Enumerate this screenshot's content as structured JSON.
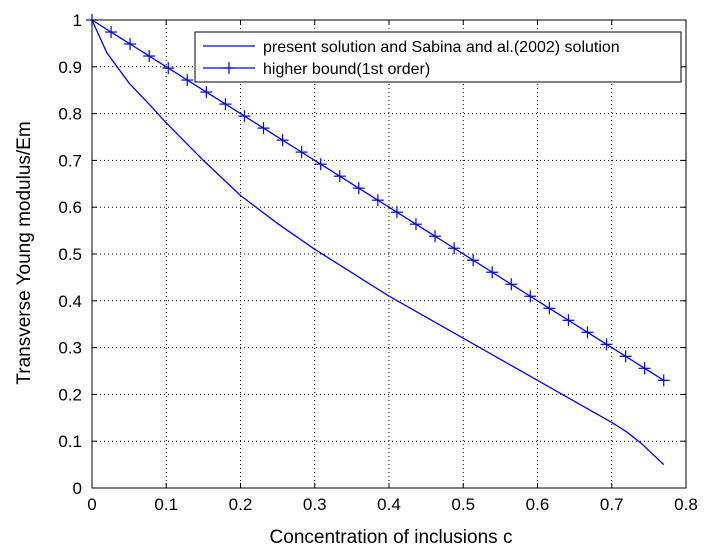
{
  "chart_data": {
    "type": "line",
    "xlabel": "Concentration of inclusions c",
    "ylabel": "Transverse Young modulus/Em",
    "xlim": [
      0,
      0.8
    ],
    "ylim": [
      0,
      1
    ],
    "xticks": [
      0,
      0.1,
      0.2,
      0.3,
      0.4,
      0.5,
      0.6,
      0.7,
      0.8
    ],
    "yticks": [
      0,
      0.1,
      0.2,
      0.3,
      0.4,
      0.5,
      0.6,
      0.7,
      0.8,
      0.9,
      1
    ],
    "xtick_labels": [
      "0",
      "0.1",
      "0.2",
      "0.3",
      "0.4",
      "0.5",
      "0.6",
      "0.7",
      "0.8"
    ],
    "ytick_labels": [
      "0",
      "0.1",
      "0.2",
      "0.3",
      "0.4",
      "0.5",
      "0.6",
      "0.7",
      "0.8",
      "0.9",
      "1"
    ],
    "grid": true,
    "grid_style": "dotted",
    "legend_position": "top-right",
    "line_color": "#0000ff",
    "series": [
      {
        "name": "present solution and Sabina and al.(2002) solution",
        "marker": "none",
        "x": [
          0,
          0.02,
          0.05,
          0.08,
          0.1,
          0.15,
          0.2,
          0.25,
          0.3,
          0.35,
          0.4,
          0.45,
          0.5,
          0.55,
          0.6,
          0.65,
          0.7,
          0.72,
          0.74,
          0.76,
          0.77
        ],
        "y": [
          1.0,
          0.93,
          0.865,
          0.815,
          0.78,
          0.7,
          0.625,
          0.565,
          0.51,
          0.46,
          0.41,
          0.365,
          0.32,
          0.275,
          0.23,
          0.185,
          0.14,
          0.12,
          0.095,
          0.065,
          0.05
        ]
      },
      {
        "name": "higher bound(1st order)",
        "marker": "plus",
        "x": [
          0,
          0.0257,
          0.0513,
          0.077,
          0.1027,
          0.1283,
          0.154,
          0.1797,
          0.2053,
          0.231,
          0.2567,
          0.2823,
          0.308,
          0.3337,
          0.3593,
          0.385,
          0.4107,
          0.4363,
          0.462,
          0.4877,
          0.5133,
          0.539,
          0.5647,
          0.5903,
          0.616,
          0.6417,
          0.6673,
          0.693,
          0.7187,
          0.7443,
          0.77
        ],
        "y": [
          1.0,
          0.9743,
          0.9487,
          0.923,
          0.8973,
          0.8717,
          0.846,
          0.8203,
          0.7947,
          0.769,
          0.7433,
          0.7177,
          0.692,
          0.6663,
          0.6407,
          0.615,
          0.5893,
          0.5637,
          0.538,
          0.5123,
          0.4867,
          0.461,
          0.4353,
          0.4097,
          0.384,
          0.3583,
          0.3327,
          0.307,
          0.2813,
          0.2557,
          0.23
        ]
      }
    ]
  }
}
